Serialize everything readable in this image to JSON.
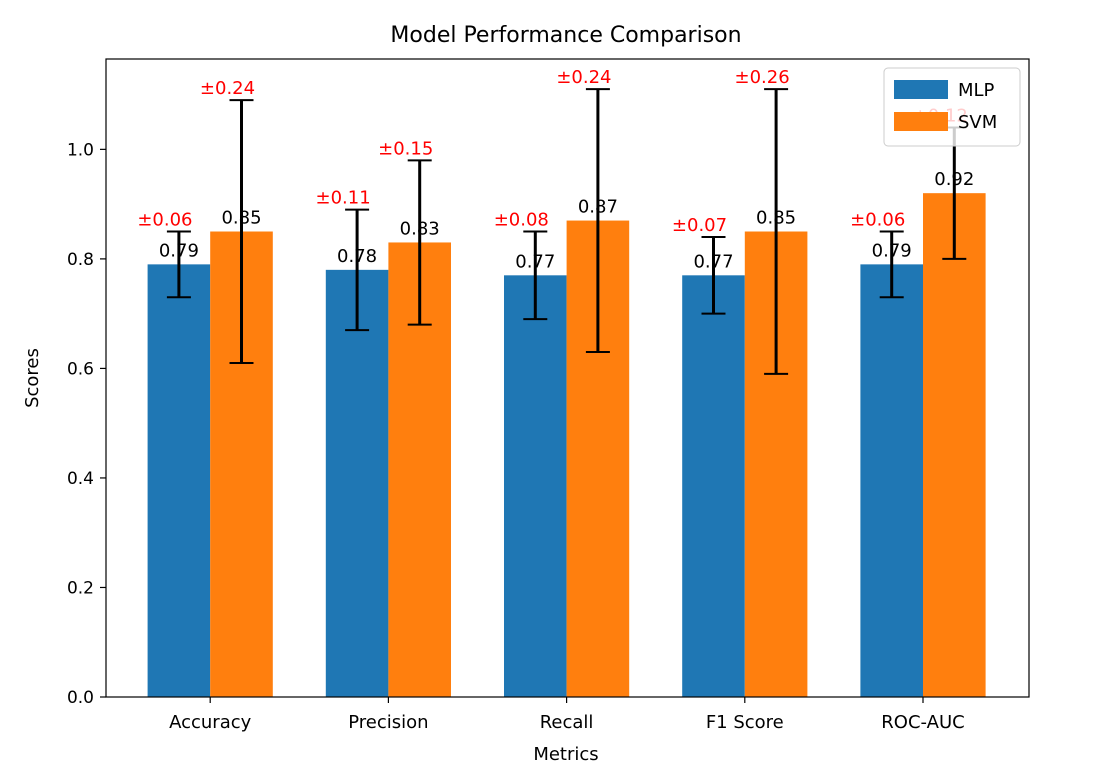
{
  "chart_data": {
    "type": "bar",
    "title": "Model Performance Comparison",
    "xlabel": "Metrics",
    "ylabel": "Scores",
    "ylim": [
      0,
      1.165
    ],
    "yticks": [
      "0.0",
      "0.2",
      "0.4",
      "0.6",
      "0.8",
      "1.0"
    ],
    "yticks_values": [
      0,
      0.2,
      0.4,
      0.6,
      0.8,
      1.0
    ],
    "categories": [
      "Accuracy",
      "Precision",
      "Recall",
      "F1 Score",
      "ROC-AUC"
    ],
    "series": [
      {
        "name": "MLP",
        "color": "#1f77b4",
        "values": [
          0.79,
          0.78,
          0.77,
          0.77,
          0.79
        ],
        "errors": [
          0.06,
          0.11,
          0.08,
          0.07,
          0.06
        ],
        "value_labels": [
          "0.79",
          "0.78",
          "0.77",
          "0.77",
          "0.79"
        ],
        "error_labels": [
          "±0.06",
          "±0.11",
          "±0.08",
          "±0.07",
          "±0.06"
        ]
      },
      {
        "name": "SVM",
        "color": "#ff7f0e",
        "values": [
          0.85,
          0.83,
          0.87,
          0.85,
          0.92
        ],
        "errors": [
          0.24,
          0.15,
          0.24,
          0.26,
          0.12
        ],
        "value_labels": [
          "0.85",
          "0.83",
          "0.87",
          "0.85",
          "0.92"
        ],
        "error_labels": [
          "±0.24",
          "±0.15",
          "±0.24",
          "±0.26",
          "±0.12"
        ]
      }
    ],
    "error_label_color": "#ff0000",
    "grid": false,
    "legend_position": "top-right"
  }
}
